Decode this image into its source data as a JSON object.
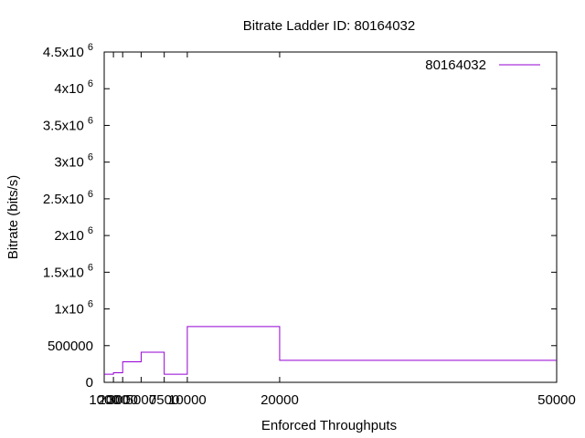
{
  "chart_data": {
    "type": "line",
    "step": true,
    "title": "Bitrate Ladder ID: 80164032",
    "xlabel": "Enforced Throughputs",
    "ylabel": "Bitrate (bits/s)",
    "xlim": [
      1000,
      50000
    ],
    "ylim": [
      0,
      4500000
    ],
    "x_ticks": [
      {
        "value": 1000,
        "label": "1000"
      },
      {
        "value": 2000,
        "label": "2000"
      },
      {
        "value": 3000,
        "label": "3000"
      },
      {
        "value": 5000,
        "label": "5000"
      },
      {
        "value": 7500,
        "label": "7500"
      },
      {
        "value": 10000,
        "label": "10000"
      },
      {
        "value": 20000,
        "label": "20000"
      },
      {
        "value": 50000,
        "label": "50000"
      }
    ],
    "y_ticks": [
      {
        "value": 0,
        "base": "0",
        "exp": ""
      },
      {
        "value": 500000,
        "base": "500000",
        "exp": ""
      },
      {
        "value": 1000000,
        "base": "1x10",
        "exp": "6"
      },
      {
        "value": 1500000,
        "base": "1.5x10",
        "exp": "6"
      },
      {
        "value": 2000000,
        "base": "2x10",
        "exp": "6"
      },
      {
        "value": 2500000,
        "base": "2.5x10",
        "exp": "6"
      },
      {
        "value": 3000000,
        "base": "3x10",
        "exp": "6"
      },
      {
        "value": 3500000,
        "base": "3.5x10",
        "exp": "6"
      },
      {
        "value": 4000000,
        "base": "4x10",
        "exp": "6"
      },
      {
        "value": 4500000,
        "base": "4.5x10",
        "exp": "6"
      }
    ],
    "series": [
      {
        "name": "80164032",
        "color": "#9400d3",
        "x": [
          1000,
          2000,
          3000,
          5000,
          7500,
          10000,
          20000,
          50000
        ],
        "y": [
          110000,
          130000,
          280000,
          410000,
          110000,
          760000,
          300000,
          300000
        ]
      }
    ],
    "legend": "top-right",
    "grid": false
  }
}
